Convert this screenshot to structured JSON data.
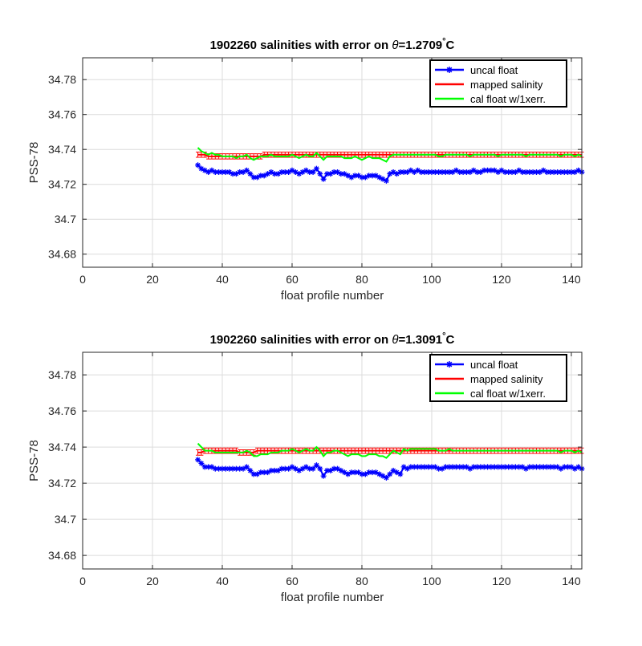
{
  "chart_data": [
    {
      "type": "line",
      "title_prefix": "1902260 salinities with error on ",
      "title_symbol": "θ",
      "title_value": "=1.2709",
      "title_degree": "°",
      "title_unit": "C",
      "xlabel": "float profile number",
      "ylabel": "PSS-78",
      "xlim": [
        0,
        143
      ],
      "ylim": [
        34.6725,
        34.7925
      ],
      "xticks": [
        0,
        20,
        40,
        60,
        80,
        100,
        120,
        140
      ],
      "yticks": [
        34.68,
        34.7,
        34.72,
        34.74,
        34.76,
        34.78
      ],
      "ytick_labels": [
        "34.68",
        "34.7",
        "34.72",
        "34.74",
        "34.76",
        "34.78"
      ],
      "grid": true,
      "legend_position": "top-right",
      "x_start": 33,
      "x_end": 143,
      "series": [
        {
          "name": "uncal float",
          "color": "#0000ff",
          "marker": "star",
          "values": [
            34.731,
            34.729,
            34.728,
            34.727,
            34.728,
            34.727,
            34.727,
            34.727,
            34.727,
            34.727,
            34.726,
            34.726,
            34.727,
            34.727,
            34.728,
            34.726,
            34.724,
            34.724,
            34.725,
            34.725,
            34.726,
            34.727,
            34.726,
            34.726,
            34.727,
            34.727,
            34.727,
            34.728,
            34.727,
            34.726,
            34.727,
            34.728,
            34.727,
            34.727,
            34.729,
            34.726,
            34.723,
            34.726,
            34.726,
            34.727,
            34.727,
            34.726,
            34.726,
            34.725,
            34.724,
            34.725,
            34.725,
            34.724,
            34.724,
            34.725,
            34.725,
            34.725,
            34.724,
            34.723,
            34.722,
            34.726,
            34.727,
            34.726,
            34.727,
            34.727,
            34.727,
            34.728,
            34.727,
            34.728,
            34.727,
            34.727,
            34.727,
            34.727,
            34.727,
            34.727,
            34.727,
            34.727,
            34.727,
            34.727,
            34.728,
            34.727,
            34.727,
            34.727,
            34.727,
            34.728,
            34.727,
            34.727,
            34.728,
            34.728,
            34.728,
            34.728,
            34.727,
            34.728,
            34.727,
            34.727,
            34.727,
            34.727,
            34.728,
            34.727,
            34.727,
            34.727,
            34.727,
            34.727,
            34.727,
            34.728,
            34.727,
            34.727,
            34.727,
            34.727,
            34.727,
            34.727,
            34.727,
            34.727,
            34.727,
            34.728,
            34.727
          ]
        },
        {
          "name": "mapped salinity",
          "color": "#ff0000",
          "error": 0.0015,
          "values": [
            34.737,
            34.737,
            34.737,
            34.736,
            34.736,
            34.736,
            34.736,
            34.736,
            34.736,
            34.736,
            34.736,
            34.736,
            34.736,
            34.736,
            34.736,
            34.736,
            34.736,
            34.736,
            34.736,
            34.737,
            34.737,
            34.737,
            34.737,
            34.737,
            34.737,
            34.737,
            34.737,
            34.737,
            34.737,
            34.737,
            34.737,
            34.737,
            34.737,
            34.737,
            34.737,
            34.737,
            34.737,
            34.737,
            34.737,
            34.737,
            34.737,
            34.737,
            34.737,
            34.737,
            34.737,
            34.737,
            34.737,
            34.737,
            34.737,
            34.737,
            34.737,
            34.737,
            34.737,
            34.737,
            34.737,
            34.737,
            34.737,
            34.737,
            34.737,
            34.737,
            34.737,
            34.737,
            34.737,
            34.737,
            34.737,
            34.737,
            34.737,
            34.737,
            34.737,
            34.737,
            34.737,
            34.737,
            34.737,
            34.737,
            34.737,
            34.737,
            34.737,
            34.737,
            34.737,
            34.737,
            34.737,
            34.737,
            34.737,
            34.737,
            34.737,
            34.737,
            34.737,
            34.737,
            34.737,
            34.737,
            34.737,
            34.737,
            34.737,
            34.737,
            34.737,
            34.737,
            34.737,
            34.737,
            34.737,
            34.737,
            34.737,
            34.737,
            34.737,
            34.737,
            34.737,
            34.737,
            34.737,
            34.737,
            34.737,
            34.737,
            34.737
          ]
        },
        {
          "name": "cal float w/1xerr.",
          "color": "#00ff00",
          "values": [
            34.741,
            34.739,
            34.738,
            34.737,
            34.738,
            34.737,
            34.737,
            34.736,
            34.736,
            34.736,
            34.736,
            34.735,
            34.736,
            34.736,
            34.737,
            34.735,
            34.734,
            34.735,
            34.736,
            34.736,
            34.736,
            34.737,
            34.736,
            34.736,
            34.736,
            34.736,
            34.736,
            34.737,
            34.736,
            34.735,
            34.736,
            34.737,
            34.736,
            34.736,
            34.738,
            34.736,
            34.734,
            34.736,
            34.736,
            34.736,
            34.736,
            34.736,
            34.735,
            34.735,
            34.735,
            34.736,
            34.735,
            34.734,
            34.735,
            34.736,
            34.735,
            34.735,
            34.735,
            34.734,
            34.733,
            34.736,
            34.737,
            34.737,
            34.737,
            34.737,
            34.737,
            34.737,
            34.737,
            34.737,
            34.737,
            34.737,
            34.737,
            34.737,
            34.737,
            34.736,
            34.736,
            34.737,
            34.737,
            34.737,
            34.737,
            34.737,
            34.737,
            34.737,
            34.736,
            34.737,
            34.737,
            34.737,
            34.737,
            34.737,
            34.737,
            34.737,
            34.736,
            34.737,
            34.737,
            34.737,
            34.737,
            34.737,
            34.737,
            34.737,
            34.736,
            34.737,
            34.737,
            34.737,
            34.737,
            34.737,
            34.737,
            34.737,
            34.737,
            34.737,
            34.736,
            34.737,
            34.737,
            34.737,
            34.736,
            34.737,
            34.736
          ]
        }
      ]
    },
    {
      "type": "line",
      "title_prefix": "1902260 salinities with error on ",
      "title_symbol": "θ",
      "title_value": "=1.3091",
      "title_degree": "°",
      "title_unit": "C",
      "xlabel": "float profile number",
      "ylabel": "PSS-78",
      "xlim": [
        0,
        143
      ],
      "ylim": [
        34.6725,
        34.7925
      ],
      "xticks": [
        0,
        20,
        40,
        60,
        80,
        100,
        120,
        140
      ],
      "yticks": [
        34.68,
        34.7,
        34.72,
        34.74,
        34.76,
        34.78
      ],
      "ytick_labels": [
        "34.68",
        "34.7",
        "34.72",
        "34.74",
        "34.76",
        "34.78"
      ],
      "grid": true,
      "legend_position": "top-right",
      "x_start": 33,
      "x_end": 143,
      "series": [
        {
          "name": "uncal float",
          "color": "#0000ff",
          "marker": "star",
          "values": [
            34.733,
            34.731,
            34.729,
            34.729,
            34.729,
            34.728,
            34.728,
            34.728,
            34.728,
            34.728,
            34.728,
            34.728,
            34.728,
            34.728,
            34.729,
            34.727,
            34.725,
            34.725,
            34.726,
            34.726,
            34.726,
            34.727,
            34.727,
            34.727,
            34.728,
            34.728,
            34.728,
            34.729,
            34.728,
            34.727,
            34.728,
            34.729,
            34.728,
            34.728,
            34.73,
            34.728,
            34.724,
            34.727,
            34.727,
            34.728,
            34.728,
            34.727,
            34.726,
            34.725,
            34.726,
            34.726,
            34.726,
            34.725,
            34.725,
            34.726,
            34.726,
            34.726,
            34.725,
            34.724,
            34.723,
            34.725,
            34.727,
            34.726,
            34.725,
            34.729,
            34.728,
            34.729,
            34.729,
            34.729,
            34.729,
            34.729,
            34.729,
            34.729,
            34.729,
            34.728,
            34.728,
            34.729,
            34.729,
            34.729,
            34.729,
            34.729,
            34.729,
            34.729,
            34.728,
            34.729,
            34.729,
            34.729,
            34.729,
            34.729,
            34.729,
            34.729,
            34.729,
            34.729,
            34.729,
            34.729,
            34.729,
            34.729,
            34.729,
            34.729,
            34.728,
            34.729,
            34.729,
            34.729,
            34.729,
            34.729,
            34.729,
            34.729,
            34.729,
            34.729,
            34.728,
            34.729,
            34.729,
            34.729,
            34.728,
            34.729,
            34.728
          ]
        },
        {
          "name": "mapped salinity",
          "color": "#ff0000",
          "error": 0.0015,
          "values": [
            34.737,
            34.737,
            34.738,
            34.738,
            34.738,
            34.738,
            34.738,
            34.738,
            34.738,
            34.738,
            34.738,
            34.738,
            34.737,
            34.737,
            34.737,
            34.737,
            34.737,
            34.738,
            34.738,
            34.738,
            34.738,
            34.738,
            34.738,
            34.738,
            34.738,
            34.738,
            34.738,
            34.738,
            34.738,
            34.738,
            34.738,
            34.738,
            34.738,
            34.738,
            34.738,
            34.738,
            34.738,
            34.738,
            34.738,
            34.738,
            34.738,
            34.738,
            34.738,
            34.738,
            34.738,
            34.738,
            34.738,
            34.738,
            34.738,
            34.738,
            34.738,
            34.738,
            34.738,
            34.738,
            34.738,
            34.738,
            34.738,
            34.738,
            34.738,
            34.738,
            34.738,
            34.738,
            34.738,
            34.738,
            34.738,
            34.738,
            34.738,
            34.738,
            34.738,
            34.738,
            34.738,
            34.738,
            34.738,
            34.738,
            34.738,
            34.738,
            34.738,
            34.738,
            34.738,
            34.738,
            34.738,
            34.738,
            34.738,
            34.738,
            34.738,
            34.738,
            34.738,
            34.738,
            34.738,
            34.738,
            34.738,
            34.738,
            34.738,
            34.738,
            34.738,
            34.738,
            34.738,
            34.738,
            34.738,
            34.738,
            34.738,
            34.738,
            34.738,
            34.738,
            34.738,
            34.738,
            34.738,
            34.738,
            34.738,
            34.738,
            34.738
          ]
        },
        {
          "name": "cal float w/1xerr.",
          "color": "#00ff00",
          "values": [
            34.742,
            34.74,
            34.738,
            34.738,
            34.738,
            34.737,
            34.737,
            34.737,
            34.737,
            34.737,
            34.737,
            34.737,
            34.737,
            34.737,
            34.738,
            34.737,
            34.735,
            34.735,
            34.736,
            34.736,
            34.736,
            34.737,
            34.737,
            34.737,
            34.738,
            34.738,
            34.738,
            34.739,
            34.738,
            34.737,
            34.738,
            34.739,
            34.738,
            34.738,
            34.74,
            34.738,
            34.735,
            34.737,
            34.737,
            34.738,
            34.738,
            34.737,
            34.736,
            34.735,
            34.736,
            34.736,
            34.736,
            34.735,
            34.735,
            34.736,
            34.736,
            34.736,
            34.735,
            34.735,
            34.734,
            34.736,
            34.738,
            34.737,
            34.736,
            34.739,
            34.738,
            34.739,
            34.739,
            34.739,
            34.739,
            34.739,
            34.739,
            34.739,
            34.739,
            34.738,
            34.738,
            34.738,
            34.739,
            34.738,
            34.738,
            34.738,
            34.738,
            34.738,
            34.738,
            34.738,
            34.738,
            34.738,
            34.738,
            34.738,
            34.738,
            34.738,
            34.738,
            34.738,
            34.738,
            34.738,
            34.738,
            34.738,
            34.738,
            34.738,
            34.738,
            34.738,
            34.738,
            34.738,
            34.738,
            34.738,
            34.738,
            34.738,
            34.738,
            34.738,
            34.737,
            34.738,
            34.738,
            34.738,
            34.737,
            34.738,
            34.737
          ]
        }
      ]
    }
  ]
}
